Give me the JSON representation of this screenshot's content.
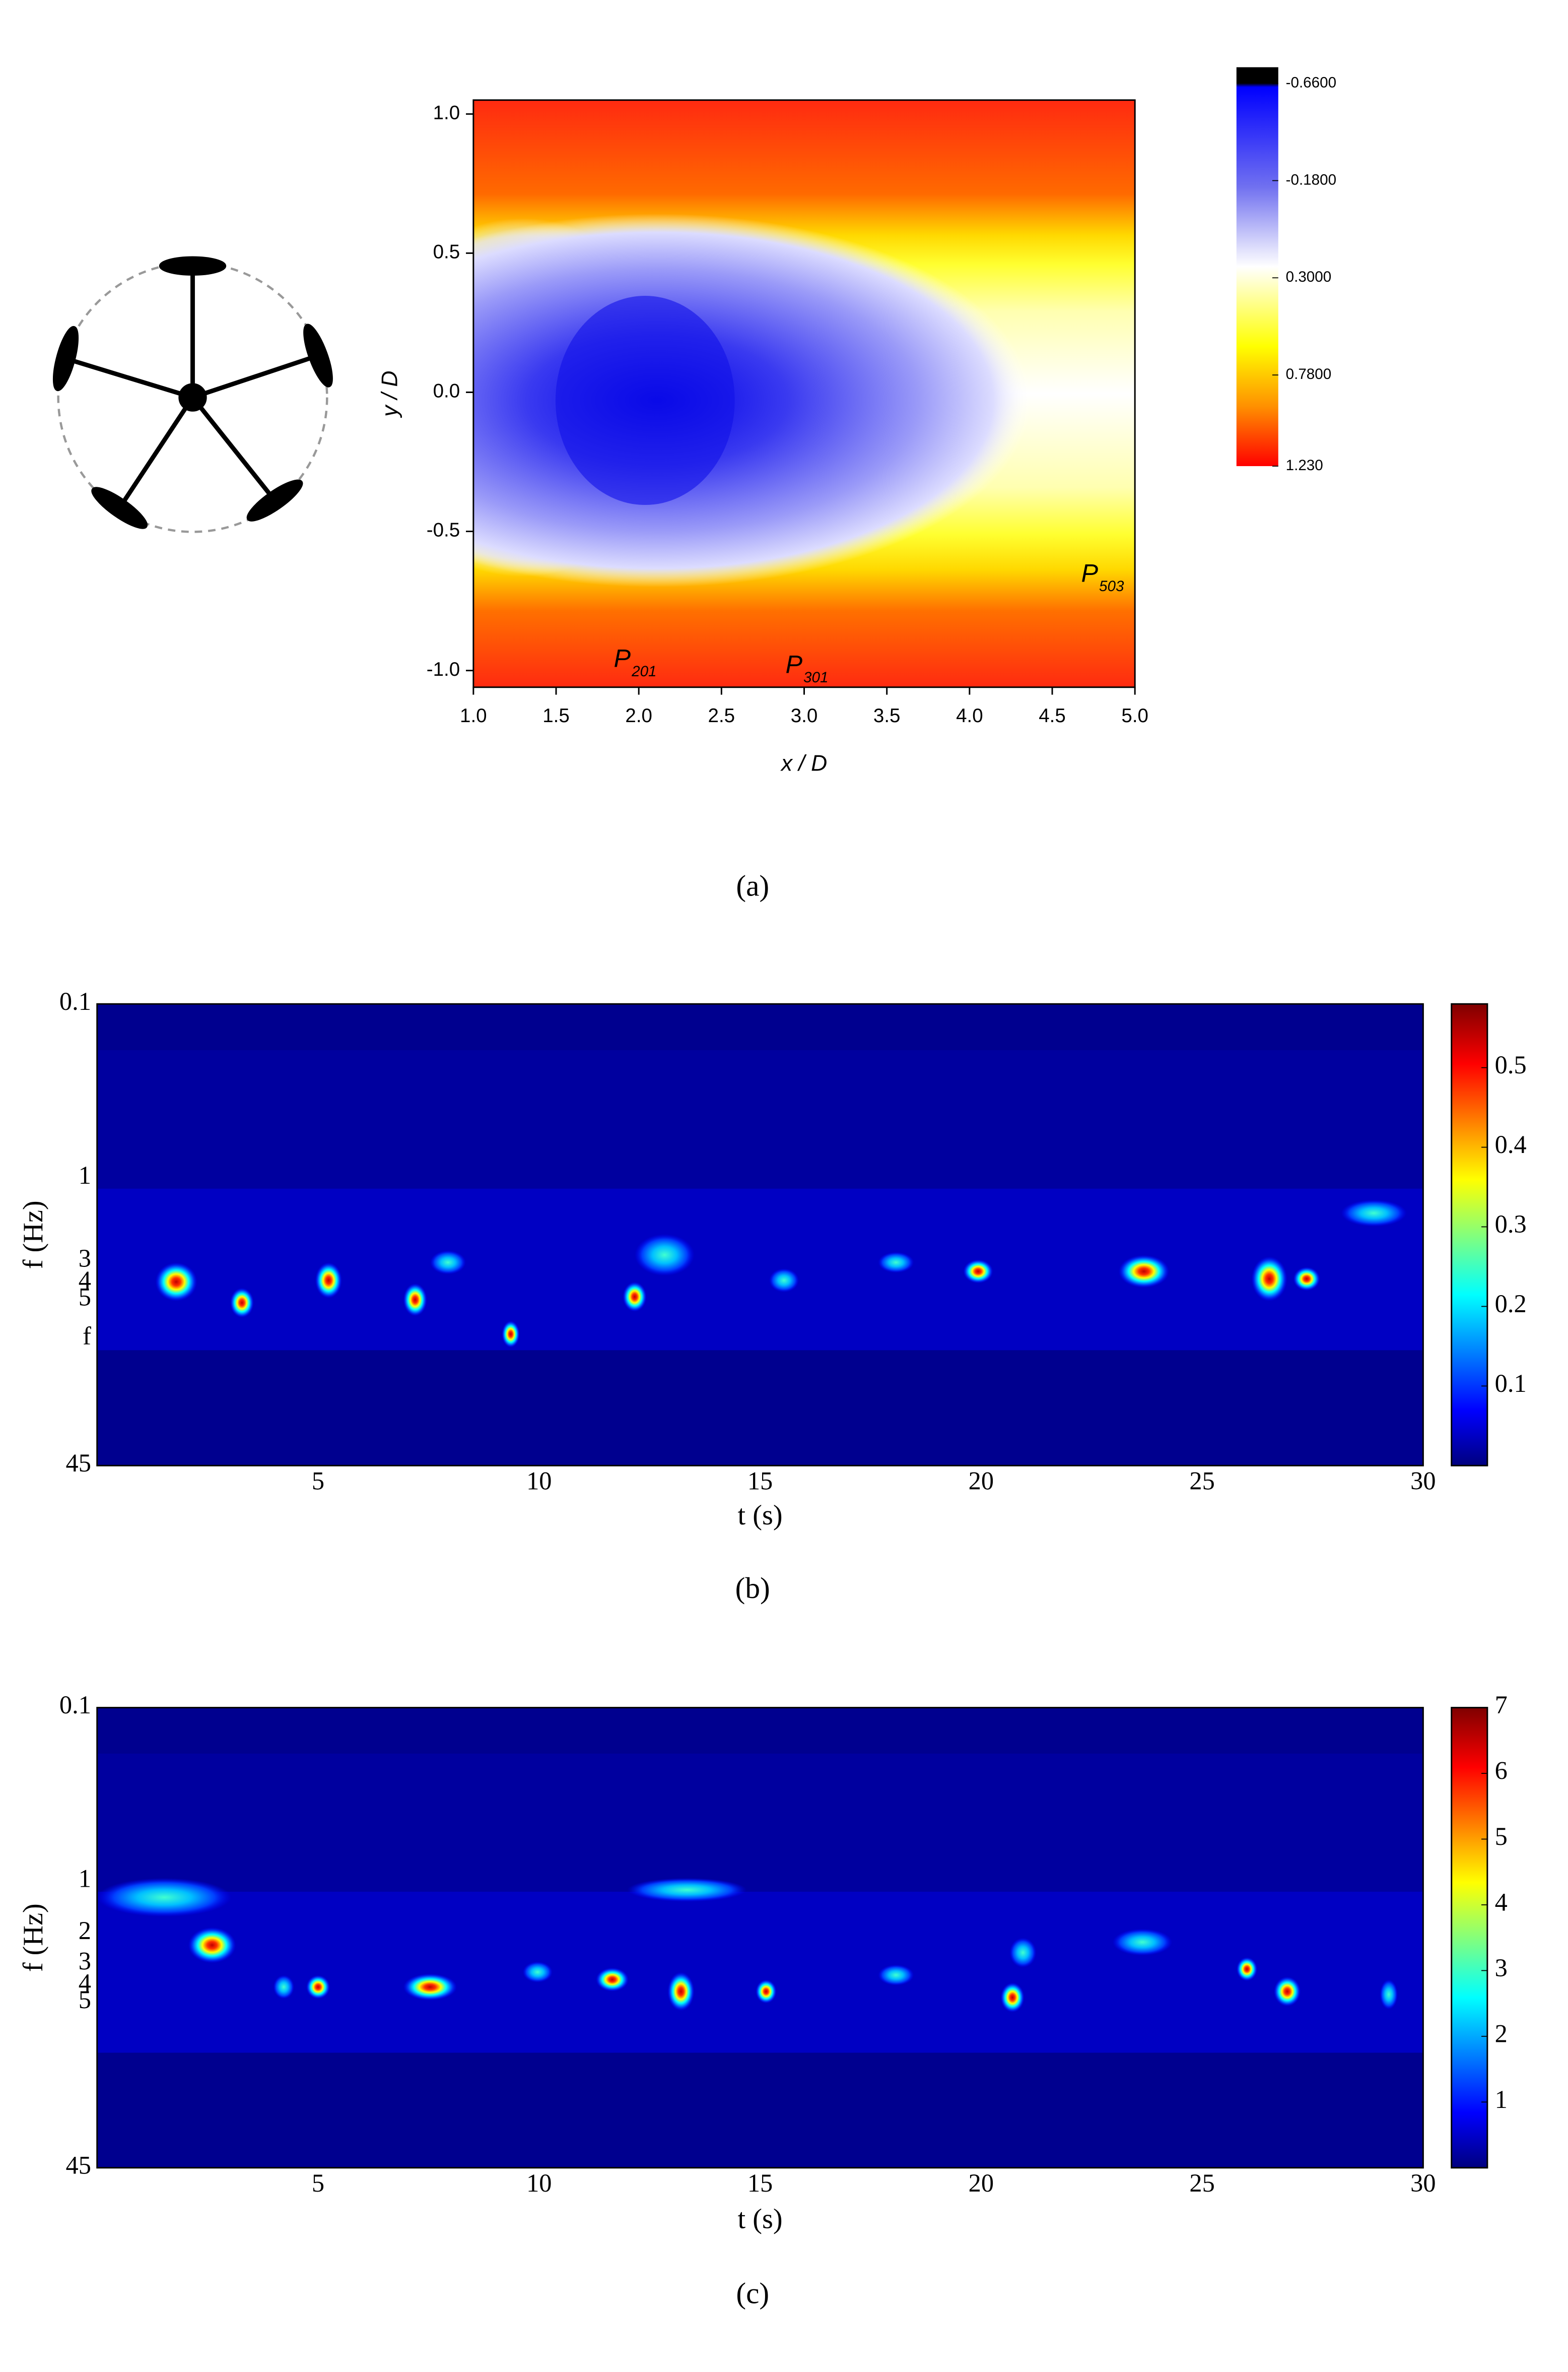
{
  "chart_data": [
    {
      "type": "contour",
      "xlabel": "x / D",
      "ylabel": "y / D",
      "caption": "(a)",
      "xlim": [
        1,
        5
      ],
      "ylim": [
        -1.06,
        1.05
      ],
      "xticks": [
        {
          "value": 1,
          "label": "1.0"
        },
        1.5,
        {
          "value": 2,
          "label": "2.0"
        },
        2.5,
        {
          "value": 3,
          "label": "3.0"
        },
        3.5,
        {
          "value": 4,
          "label": "4.0"
        },
        4.5,
        {
          "value": 5,
          "label": "5.0"
        }
      ],
      "yticks": [
        {
          "value": -1,
          "label": "-1.0"
        },
        -0.5,
        {
          "value": 0,
          "label": "0.0"
        },
        0.5,
        {
          "value": 1,
          "label": "1.0"
        }
      ],
      "colorbar_lim": [
        -0.74,
        1.23
      ],
      "colorbar_reversed": true,
      "colorbar_ticks": [
        {
          "value": -0.66,
          "label": "-0.6600"
        },
        {
          "value": -0.18,
          "label": "-0.1800"
        },
        {
          "value": 0.3,
          "label": "0.3000"
        },
        {
          "value": 0.78,
          "label": "0.7800"
        },
        {
          "value": 1.23,
          "label": "1.230"
        }
      ],
      "annotations": [
        {
          "text": "P",
          "subscript": "201"
        },
        {
          "text": "P",
          "subscript": "301"
        },
        {
          "text": "P",
          "subscript": "503"
        }
      ]
    },
    {
      "type": "contour",
      "xlabel": "t (s)",
      "ylabel": "f (Hz)",
      "caption": "(b)",
      "xlim": [
        0,
        30
      ],
      "xticks": [
        5,
        10,
        15,
        20,
        25,
        30
      ],
      "yscale": "log",
      "y_reversed": true,
      "ylim": [
        0.1,
        45
      ],
      "yticks": [
        0.1,
        1,
        3,
        4,
        5,
        {
          "value": 8.4,
          "label": "f"
        },
        45
      ],
      "colorbar_lim": [
        0,
        0.58
      ],
      "colorbar_ticks": [
        0.1,
        0.2,
        0.3,
        0.4,
        0.5
      ]
    },
    {
      "type": "contour",
      "xlabel": "t (s)",
      "ylabel": "f (Hz)",
      "caption": "(c)",
      "xlim": [
        0,
        30
      ],
      "xticks": [
        5,
        10,
        15,
        20,
        25,
        30
      ],
      "yscale": "log",
      "y_reversed": true,
      "ylim": [
        0.1,
        45
      ],
      "yticks": [
        0.1,
        1,
        2,
        3,
        4,
        5,
        45
      ],
      "colorbar_lim": [
        0,
        7
      ],
      "colorbar_ticks": [
        1,
        2,
        3,
        4,
        5,
        6,
        7
      ]
    }
  ]
}
